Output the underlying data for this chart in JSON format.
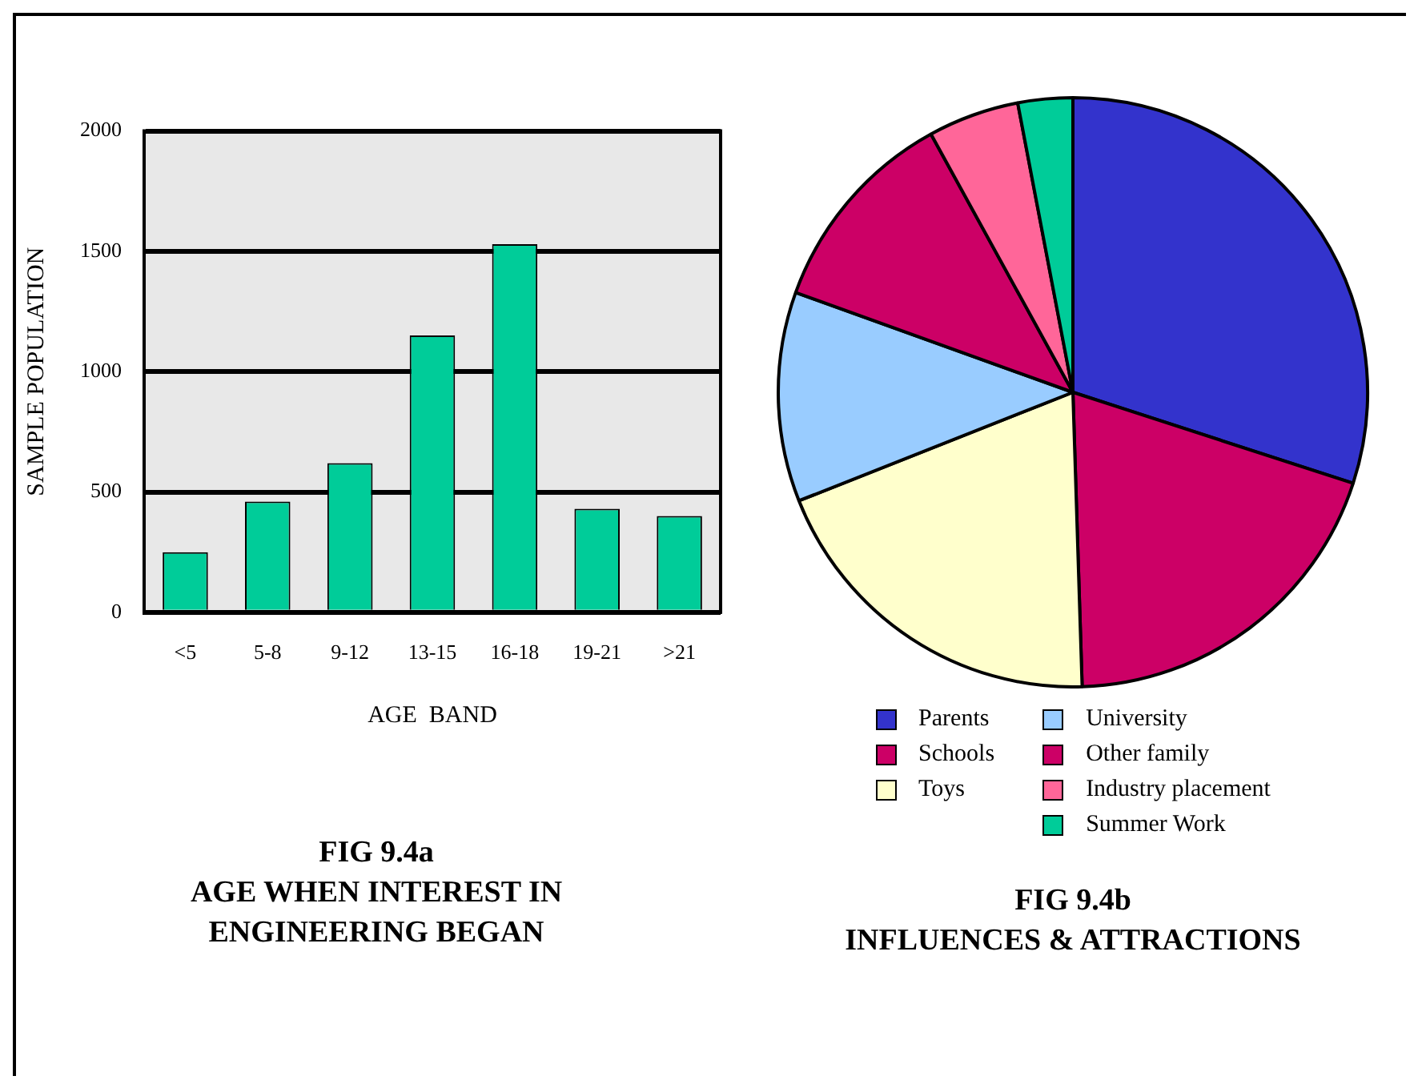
{
  "chart_data": [
    {
      "type": "bar",
      "title": "FIG 9.4a",
      "subtitle": "AGE WHEN INTEREST IN ENGINEERING BEGAN",
      "xlabel": "AGE  BAND",
      "ylabel": "SAMPLE POPULATION",
      "categories": [
        "<5",
        "5-8",
        "9-12",
        "13-15",
        "16-18",
        "19-21",
        ">21"
      ],
      "values": [
        250,
        460,
        620,
        1150,
        1530,
        430,
        400
      ],
      "color": "#00cc99",
      "ylim": [
        0,
        2000
      ],
      "yticks": [
        0,
        500,
        1000,
        1500,
        2000
      ],
      "grid": "y"
    },
    {
      "type": "pie",
      "title": "FIG 9.4b",
      "subtitle": "INFLUENCES & ATTRACTIONS",
      "categories": [
        "Parents",
        "Schools",
        "Toys",
        "University",
        "Other family",
        "Industry placement",
        "Summer Work"
      ],
      "values": [
        30,
        19.5,
        19.5,
        11.5,
        11.5,
        5,
        3
      ],
      "colors": [
        "#3333cc",
        "#cc0066",
        "#ffffcc",
        "#99ccff",
        "#cc0066",
        "#ff6699",
        "#00cc99"
      ],
      "legend": "bottom"
    }
  ]
}
